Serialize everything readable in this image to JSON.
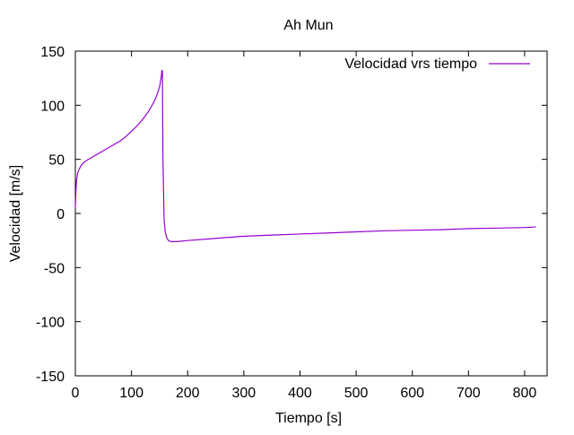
{
  "chart_data": {
    "type": "line",
    "title": "Ah Mun",
    "xlabel": "Tiempo [s]",
    "ylabel": "Velocidad [m/s]",
    "xlim": [
      0,
      840
    ],
    "ylim": [
      -150,
      150
    ],
    "x_ticks": [
      0,
      100,
      200,
      300,
      400,
      500,
      600,
      700,
      800
    ],
    "y_ticks": [
      -150,
      -100,
      -50,
      0,
      50,
      100,
      150
    ],
    "grid": false,
    "legend": "top-right",
    "colors": {
      "series": "#9400d3",
      "axis": "#000000",
      "background": "#ffffff"
    },
    "series": [
      {
        "name": "Velocidad vrs tiempo",
        "x": [
          0,
          1,
          2,
          4,
          6,
          10,
          15,
          20,
          30,
          40,
          50,
          60,
          70,
          80,
          90,
          100,
          110,
          120,
          130,
          140,
          145,
          150,
          153,
          154,
          155,
          156,
          158,
          160,
          163,
          166,
          170,
          180,
          200,
          250,
          300,
          350,
          400,
          450,
          500,
          550,
          600,
          650,
          700,
          750,
          800,
          820
        ],
        "y": [
          5,
          20,
          30,
          37,
          40,
          44,
          47,
          49,
          52,
          55,
          58,
          61,
          64,
          67,
          71,
          76,
          81,
          87,
          94,
          103,
          109,
          117,
          126,
          132,
          132,
          50,
          -5,
          -17,
          -23,
          -25,
          -26,
          -26,
          -25,
          -23,
          -21,
          -20,
          -19,
          -18,
          -17,
          -16,
          -15.5,
          -15,
          -14,
          -13.5,
          -13,
          -12.5
        ]
      }
    ]
  }
}
